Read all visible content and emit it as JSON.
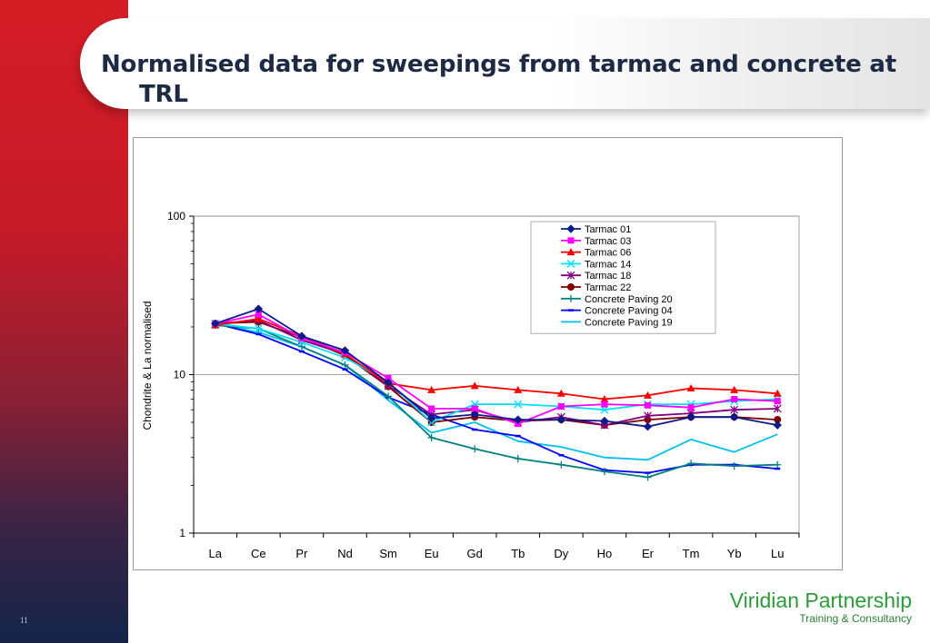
{
  "slide": {
    "title_line1": "Normalised data for sweepings from tarmac and concrete at",
    "title_line2": "TRL",
    "slide_number": "11",
    "brand_name": "Viridian Partnership",
    "brand_tagline": "Training & Consultancy"
  },
  "colors": {
    "sidebar_top": "#d51c25",
    "sidebar_bottom": "#13244a",
    "brand_green": "#2e9a3a"
  },
  "chart_data": {
    "type": "line",
    "title": "",
    "xlabel": "",
    "ylabel": "Chondrite & La normalised",
    "yscale": "log",
    "ylim": [
      1,
      100
    ],
    "yticks": [
      1,
      10,
      100
    ],
    "ytick_labels": [
      "1",
      "10",
      "100"
    ],
    "grid": "horizontal major",
    "legend": "top-right",
    "categories": [
      "La",
      "Ce",
      "Pr",
      "Nd",
      "Sm",
      "Eu",
      "Gd",
      "Tb",
      "Dy",
      "Ho",
      "Er",
      "Tm",
      "Yb",
      "Lu"
    ],
    "series": [
      {
        "name": "Tarmac 01",
        "color": "#0a1a8a",
        "marker": "diamond",
        "values": [
          21,
          26,
          17.5,
          14.2,
          8.9,
          5.3,
          5.6,
          5.2,
          5.2,
          5.1,
          4.7,
          5.4,
          5.4,
          4.8
        ]
      },
      {
        "name": "Tarmac 03",
        "color": "#ff00ff",
        "marker": "square",
        "values": [
          21,
          24,
          17,
          13.8,
          9.5,
          6.1,
          6.1,
          4.9,
          6.3,
          6.5,
          6.4,
          6.2,
          7.0,
          6.8
        ]
      },
      {
        "name": "Tarmac 06",
        "color": "#ff0000",
        "marker": "triangle",
        "values": [
          20.5,
          22.5,
          17.5,
          13.5,
          8.8,
          8.0,
          8.5,
          8.0,
          7.6,
          7.0,
          7.4,
          8.2,
          8.0,
          7.6
        ]
      },
      {
        "name": "Tarmac 14",
        "color": "#00e0ff",
        "marker": "x",
        "values": [
          21,
          19.5,
          16,
          12.8,
          9.0,
          5.0,
          6.5,
          6.5,
          6.3,
          6.0,
          6.5,
          6.5,
          6.8,
          7.0
        ]
      },
      {
        "name": "Tarmac 18",
        "color": "#800080",
        "marker": "star",
        "values": [
          21,
          22,
          16.5,
          13.5,
          8.5,
          5.6,
          6.0,
          5.0,
          5.4,
          4.8,
          5.5,
          5.7,
          6.0,
          6.1
        ]
      },
      {
        "name": "Tarmac 22",
        "color": "#800000",
        "marker": "circle",
        "values": [
          21,
          21.5,
          17.2,
          13.2,
          8.4,
          5.0,
          5.4,
          5.1,
          5.2,
          4.8,
          5.2,
          5.4,
          5.4,
          5.2
        ]
      },
      {
        "name": "Concrete Paving 20",
        "color": "#008080",
        "marker": "plus",
        "values": [
          20.5,
          19.5,
          15,
          11.5,
          7.3,
          4.0,
          3.4,
          2.95,
          2.7,
          2.45,
          2.25,
          2.75,
          2.65,
          2.7
        ]
      },
      {
        "name": "Concrete Paving 04",
        "color": "#0000ff",
        "marker": "dash",
        "values": [
          21,
          18,
          14,
          10.8,
          7.2,
          5.6,
          4.5,
          4.1,
          3.1,
          2.5,
          2.4,
          2.7,
          2.7,
          2.55
        ]
      },
      {
        "name": "Concrete Paving 19",
        "color": "#00c0f0",
        "marker": "none",
        "values": [
          21,
          18.5,
          15,
          11.5,
          6.9,
          4.3,
          5.0,
          3.8,
          3.5,
          3.0,
          2.9,
          3.9,
          3.25,
          4.2
        ]
      }
    ]
  }
}
